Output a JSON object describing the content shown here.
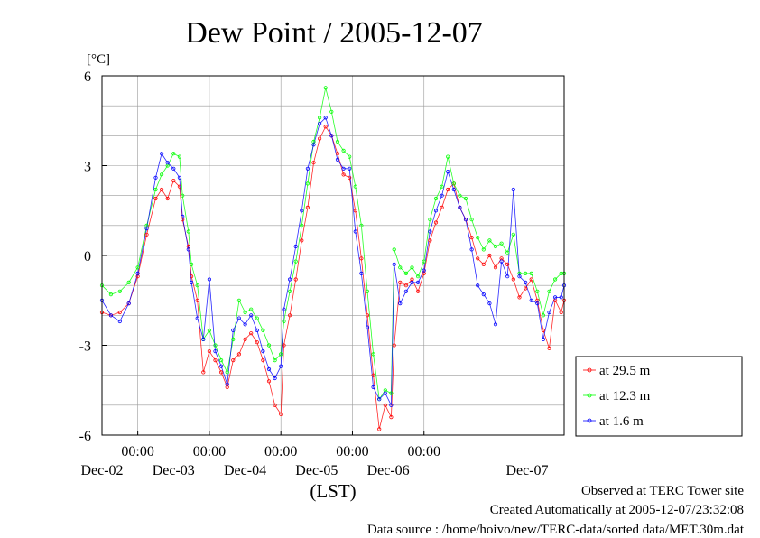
{
  "chart_data": {
    "type": "line",
    "title": "Dew Point / 2005-12-07",
    "yunit": "[°C]",
    "xlabel": "(LST)",
    "ylim": [
      -6,
      6
    ],
    "yticks": [
      6,
      3,
      0,
      -3,
      -6
    ],
    "xlim": [
      "2005-12-01T12:00",
      "2005-12-07T23:00"
    ],
    "xticks": [
      {
        "time": "00:00",
        "date": "Dec-02",
        "at": "2005-12-02T00:00"
      },
      {
        "time": "00:00",
        "date": "Dec-03",
        "at": "2005-12-03T00:00"
      },
      {
        "time": "00:00",
        "date": "Dec-04",
        "at": "2005-12-04T00:00"
      },
      {
        "time": "00:00",
        "date": "Dec-05",
        "at": "2005-12-05T00:00"
      },
      {
        "time": "00:00",
        "date": "Dec-06",
        "at": "2005-12-06T00:00"
      }
    ],
    "xlabel_last": "Dec-07",
    "grid": true,
    "legend_position": "right",
    "series": [
      {
        "name": "at 29.5 m",
        "color": "#ff0000",
        "points": [
          [
            "2005-12-01T12:00",
            -1.9
          ],
          [
            "2005-12-01T15:00",
            -2.0
          ],
          [
            "2005-12-01T18:00",
            -1.9
          ],
          [
            "2005-12-01T21:00",
            -1.6
          ],
          [
            "2005-12-02T00:00",
            -0.7
          ],
          [
            "2005-12-02T03:00",
            0.7
          ],
          [
            "2005-12-02T06:00",
            1.9
          ],
          [
            "2005-12-02T08:00",
            2.2
          ],
          [
            "2005-12-02T10:00",
            1.9
          ],
          [
            "2005-12-02T12:00",
            2.5
          ],
          [
            "2005-12-02T14:00",
            2.3
          ],
          [
            "2005-12-02T15:00",
            1.2
          ],
          [
            "2005-12-02T17:00",
            0.3
          ],
          [
            "2005-12-02T18:00",
            -0.7
          ],
          [
            "2005-12-02T20:00",
            -1.5
          ],
          [
            "2005-12-02T22:00",
            -3.9
          ],
          [
            "2005-12-03T00:00",
            -3.2
          ],
          [
            "2005-12-03T02:00",
            -3.5
          ],
          [
            "2005-12-03T04:00",
            -3.9
          ],
          [
            "2005-12-03T06:00",
            -4.4
          ],
          [
            "2005-12-03T08:00",
            -3.5
          ],
          [
            "2005-12-03T10:00",
            -3.3
          ],
          [
            "2005-12-03T12:00",
            -2.8
          ],
          [
            "2005-12-03T14:00",
            -2.6
          ],
          [
            "2005-12-03T16:00",
            -2.9
          ],
          [
            "2005-12-03T18:00",
            -3.5
          ],
          [
            "2005-12-03T20:00",
            -4.2
          ],
          [
            "2005-12-03T22:00",
            -5.0
          ],
          [
            "2005-12-04T00:00",
            -5.3
          ],
          [
            "2005-12-04T01:00",
            -3.0
          ],
          [
            "2005-12-04T03:00",
            -2.0
          ],
          [
            "2005-12-04T05:00",
            -0.8
          ],
          [
            "2005-12-04T07:00",
            0.5
          ],
          [
            "2005-12-04T09:00",
            1.6
          ],
          [
            "2005-12-04T11:00",
            3.1
          ],
          [
            "2005-12-04T13:00",
            3.9
          ],
          [
            "2005-12-04T15:00",
            4.3
          ],
          [
            "2005-12-04T17:00",
            4.0
          ],
          [
            "2005-12-04T19:00",
            3.4
          ],
          [
            "2005-12-04T21:00",
            2.7
          ],
          [
            "2005-12-04T23:00",
            2.6
          ],
          [
            "2005-12-05T01:00",
            1.5
          ],
          [
            "2005-12-05T03:00",
            -0.1
          ],
          [
            "2005-12-05T05:00",
            -2.0
          ],
          [
            "2005-12-05T07:00",
            -4.0
          ],
          [
            "2005-12-05T09:00",
            -5.8
          ],
          [
            "2005-12-05T11:00",
            -5.0
          ],
          [
            "2005-12-05T13:00",
            -5.4
          ],
          [
            "2005-12-05T14:00",
            -3.0
          ],
          [
            "2005-12-05T16:00",
            -0.9
          ],
          [
            "2005-12-05T18:00",
            -1.0
          ],
          [
            "2005-12-05T20:00",
            -0.8
          ],
          [
            "2005-12-05T22:00",
            -1.2
          ],
          [
            "2005-12-06T00:00",
            -0.6
          ],
          [
            "2005-12-06T02:00",
            0.5
          ],
          [
            "2005-12-06T04:00",
            1.1
          ],
          [
            "2005-12-06T06:00",
            1.6
          ],
          [
            "2005-12-06T08:00",
            2.2
          ],
          [
            "2005-12-06T10:00",
            2.4
          ],
          [
            "2005-12-06T12:00",
            1.6
          ],
          [
            "2005-12-06T14:00",
            1.2
          ],
          [
            "2005-12-06T16:00",
            0.6
          ],
          [
            "2005-12-06T18:00",
            -0.1
          ],
          [
            "2005-12-06T20:00",
            -0.3
          ],
          [
            "2005-12-06T22:00",
            0.0
          ],
          [
            "2005-12-07T00:00",
            -0.4
          ],
          [
            "2005-12-07T02:00",
            -0.1
          ],
          [
            "2005-12-07T04:00",
            -0.3
          ],
          [
            "2005-12-07T06:00",
            -0.8
          ],
          [
            "2005-12-07T08:00",
            -1.4
          ],
          [
            "2005-12-07T10:00",
            -1.1
          ],
          [
            "2005-12-07T12:00",
            -0.8
          ],
          [
            "2005-12-07T14:00",
            -1.5
          ],
          [
            "2005-12-07T16:00",
            -2.5
          ],
          [
            "2005-12-07T18:00",
            -3.1
          ],
          [
            "2005-12-07T20:00",
            -1.5
          ],
          [
            "2005-12-07T22:00",
            -1.9
          ],
          [
            "2005-12-07T23:00",
            -1.5
          ]
        ]
      },
      {
        "name": "at 12.3 m",
        "color": "#00ff00",
        "points": [
          [
            "2005-12-01T12:00",
            -1.0
          ],
          [
            "2005-12-01T15:00",
            -1.3
          ],
          [
            "2005-12-01T18:00",
            -1.2
          ],
          [
            "2005-12-01T21:00",
            -0.9
          ],
          [
            "2005-12-02T00:00",
            -0.4
          ],
          [
            "2005-12-02T03:00",
            1.0
          ],
          [
            "2005-12-02T06:00",
            2.2
          ],
          [
            "2005-12-02T08:00",
            2.7
          ],
          [
            "2005-12-02T10:00",
            3.0
          ],
          [
            "2005-12-02T12:00",
            3.4
          ],
          [
            "2005-12-02T14:00",
            3.3
          ],
          [
            "2005-12-02T15:00",
            2.0
          ],
          [
            "2005-12-02T17:00",
            0.8
          ],
          [
            "2005-12-02T18:00",
            -0.3
          ],
          [
            "2005-12-02T20:00",
            -1.0
          ],
          [
            "2005-12-02T22:00",
            -2.8
          ],
          [
            "2005-12-03T00:00",
            -2.5
          ],
          [
            "2005-12-03T02:00",
            -3.0
          ],
          [
            "2005-12-03T04:00",
            -3.5
          ],
          [
            "2005-12-03T06:00",
            -3.9
          ],
          [
            "2005-12-03T08:00",
            -2.8
          ],
          [
            "2005-12-03T10:00",
            -1.5
          ],
          [
            "2005-12-03T12:00",
            -1.9
          ],
          [
            "2005-12-03T14:00",
            -1.8
          ],
          [
            "2005-12-03T16:00",
            -2.1
          ],
          [
            "2005-12-03T18:00",
            -2.5
          ],
          [
            "2005-12-03T20:00",
            -3.0
          ],
          [
            "2005-12-03T22:00",
            -3.5
          ],
          [
            "2005-12-04T00:00",
            -3.3
          ],
          [
            "2005-12-04T01:00",
            -2.2
          ],
          [
            "2005-12-04T03:00",
            -1.2
          ],
          [
            "2005-12-04T05:00",
            -0.2
          ],
          [
            "2005-12-04T07:00",
            1.0
          ],
          [
            "2005-12-04T09:00",
            2.4
          ],
          [
            "2005-12-04T11:00",
            3.8
          ],
          [
            "2005-12-04T13:00",
            4.6
          ],
          [
            "2005-12-04T15:00",
            5.6
          ],
          [
            "2005-12-04T17:00",
            4.8
          ],
          [
            "2005-12-04T19:00",
            3.8
          ],
          [
            "2005-12-04T21:00",
            3.5
          ],
          [
            "2005-12-04T23:00",
            3.3
          ],
          [
            "2005-12-05T01:00",
            2.3
          ],
          [
            "2005-12-05T03:00",
            1.0
          ],
          [
            "2005-12-05T05:00",
            -1.2
          ],
          [
            "2005-12-05T07:00",
            -3.3
          ],
          [
            "2005-12-05T09:00",
            -4.8
          ],
          [
            "2005-12-05T11:00",
            -4.5
          ],
          [
            "2005-12-05T13:00",
            -4.6
          ],
          [
            "2005-12-05T14:00",
            0.2
          ],
          [
            "2005-12-05T16:00",
            -0.4
          ],
          [
            "2005-12-05T18:00",
            -0.6
          ],
          [
            "2005-12-05T20:00",
            -0.4
          ],
          [
            "2005-12-05T22:00",
            -0.7
          ],
          [
            "2005-12-06T00:00",
            -0.2
          ],
          [
            "2005-12-06T02:00",
            1.2
          ],
          [
            "2005-12-06T04:00",
            1.9
          ],
          [
            "2005-12-06T06:00",
            2.3
          ],
          [
            "2005-12-06T08:00",
            3.3
          ],
          [
            "2005-12-06T10:00",
            2.4
          ],
          [
            "2005-12-06T12:00",
            2.0
          ],
          [
            "2005-12-06T14:00",
            1.9
          ],
          [
            "2005-12-06T16:00",
            1.2
          ],
          [
            "2005-12-06T18:00",
            0.6
          ],
          [
            "2005-12-06T20:00",
            0.2
          ],
          [
            "2005-12-06T22:00",
            0.5
          ],
          [
            "2005-12-07T00:00",
            0.3
          ],
          [
            "2005-12-07T02:00",
            0.4
          ],
          [
            "2005-12-07T04:00",
            0.1
          ],
          [
            "2005-12-07T06:00",
            0.7
          ],
          [
            "2005-12-07T08:00",
            -0.6
          ],
          [
            "2005-12-07T10:00",
            -0.6
          ],
          [
            "2005-12-07T12:00",
            -0.6
          ],
          [
            "2005-12-07T14:00",
            -1.2
          ],
          [
            "2005-12-07T16:00",
            -2.0
          ],
          [
            "2005-12-07T18:00",
            -1.2
          ],
          [
            "2005-12-07T20:00",
            -0.8
          ],
          [
            "2005-12-07T22:00",
            -0.6
          ],
          [
            "2005-12-07T23:00",
            -0.6
          ]
        ]
      },
      {
        "name": "at 1.6 m",
        "color": "#0000ff",
        "points": [
          [
            "2005-12-01T12:00",
            -1.5
          ],
          [
            "2005-12-01T15:00",
            -2.0
          ],
          [
            "2005-12-01T18:00",
            -2.2
          ],
          [
            "2005-12-01T21:00",
            -1.6
          ],
          [
            "2005-12-02T00:00",
            -0.6
          ],
          [
            "2005-12-02T03:00",
            0.9
          ],
          [
            "2005-12-02T06:00",
            2.6
          ],
          [
            "2005-12-02T08:00",
            3.4
          ],
          [
            "2005-12-02T10:00",
            3.1
          ],
          [
            "2005-12-02T12:00",
            2.9
          ],
          [
            "2005-12-02T14:00",
            2.6
          ],
          [
            "2005-12-02T15:00",
            1.3
          ],
          [
            "2005-12-02T17:00",
            0.2
          ],
          [
            "2005-12-02T18:00",
            -0.9
          ],
          [
            "2005-12-02T20:00",
            -2.1
          ],
          [
            "2005-12-02T22:00",
            -2.8
          ],
          [
            "2005-12-03T00:00",
            -0.8
          ],
          [
            "2005-12-03T02:00",
            -3.2
          ],
          [
            "2005-12-03T04:00",
            -3.7
          ],
          [
            "2005-12-03T06:00",
            -4.3
          ],
          [
            "2005-12-03T08:00",
            -2.5
          ],
          [
            "2005-12-03T10:00",
            -2.1
          ],
          [
            "2005-12-03T12:00",
            -2.3
          ],
          [
            "2005-12-03T14:00",
            -2.0
          ],
          [
            "2005-12-03T16:00",
            -2.5
          ],
          [
            "2005-12-03T18:00",
            -3.2
          ],
          [
            "2005-12-03T20:00",
            -3.8
          ],
          [
            "2005-12-03T22:00",
            -4.1
          ],
          [
            "2005-12-04T00:00",
            -3.7
          ],
          [
            "2005-12-04T01:00",
            -1.8
          ],
          [
            "2005-12-04T03:00",
            -0.8
          ],
          [
            "2005-12-04T05:00",
            0.3
          ],
          [
            "2005-12-04T07:00",
            1.5
          ],
          [
            "2005-12-04T09:00",
            2.9
          ],
          [
            "2005-12-04T11:00",
            3.7
          ],
          [
            "2005-12-04T13:00",
            4.4
          ],
          [
            "2005-12-04T15:00",
            4.6
          ],
          [
            "2005-12-04T17:00",
            4.0
          ],
          [
            "2005-12-04T19:00",
            3.2
          ],
          [
            "2005-12-04T21:00",
            2.9
          ],
          [
            "2005-12-04T23:00",
            2.9
          ],
          [
            "2005-12-05T01:00",
            0.8
          ],
          [
            "2005-12-05T03:00",
            -0.6
          ],
          [
            "2005-12-05T05:00",
            -2.4
          ],
          [
            "2005-12-05T07:00",
            -4.4
          ],
          [
            "2005-12-05T09:00",
            -4.8
          ],
          [
            "2005-12-05T11:00",
            -4.6
          ],
          [
            "2005-12-05T13:00",
            -5.0
          ],
          [
            "2005-12-05T14:00",
            -0.3
          ],
          [
            "2005-12-05T16:00",
            -1.6
          ],
          [
            "2005-12-05T18:00",
            -1.2
          ],
          [
            "2005-12-05T20:00",
            -0.9
          ],
          [
            "2005-12-05T22:00",
            -0.9
          ],
          [
            "2005-12-06T00:00",
            -0.5
          ],
          [
            "2005-12-06T02:00",
            0.8
          ],
          [
            "2005-12-06T04:00",
            1.5
          ],
          [
            "2005-12-06T06:00",
            2.0
          ],
          [
            "2005-12-06T08:00",
            2.8
          ],
          [
            "2005-12-06T10:00",
            2.2
          ],
          [
            "2005-12-06T12:00",
            1.6
          ],
          [
            "2005-12-06T14:00",
            1.2
          ],
          [
            "2005-12-06T16:00",
            0.2
          ],
          [
            "2005-12-06T18:00",
            -1.0
          ],
          [
            "2005-12-06T20:00",
            -1.3
          ],
          [
            "2005-12-06T22:00",
            -1.6
          ],
          [
            "2005-12-07T00:00",
            -2.3
          ],
          [
            "2005-12-07T02:00",
            -0.2
          ],
          [
            "2005-12-07T04:00",
            -0.7
          ],
          [
            "2005-12-07T06:00",
            2.2
          ],
          [
            "2005-12-07T08:00",
            -0.7
          ],
          [
            "2005-12-07T10:00",
            -0.9
          ],
          [
            "2005-12-07T12:00",
            -1.5
          ],
          [
            "2005-12-07T14:00",
            -1.6
          ],
          [
            "2005-12-07T16:00",
            -2.8
          ],
          [
            "2005-12-07T18:00",
            -1.9
          ],
          [
            "2005-12-07T20:00",
            -1.4
          ],
          [
            "2005-12-07T22:00",
            -1.4
          ],
          [
            "2005-12-07T23:00",
            -1.0
          ]
        ]
      }
    ]
  },
  "footer": {
    "observed": "Observed at TERC Tower site",
    "created": "Created Automatically at 2005-12-07/23:32:08",
    "source": "Data source : /home/hoivo/new/TERC-data/sorted  data/MET.30m.dat"
  }
}
